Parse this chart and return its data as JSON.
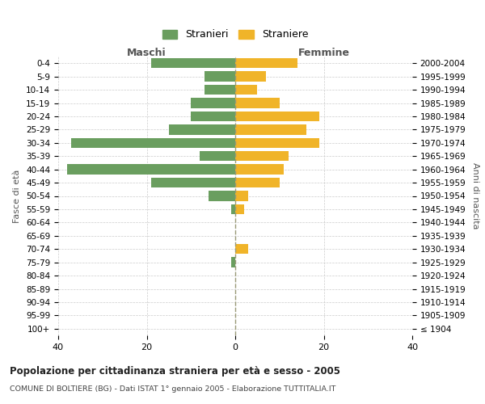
{
  "age_groups": [
    "0-4",
    "5-9",
    "10-14",
    "15-19",
    "20-24",
    "25-29",
    "30-34",
    "35-39",
    "40-44",
    "45-49",
    "50-54",
    "55-59",
    "60-64",
    "65-69",
    "70-74",
    "75-79",
    "80-84",
    "85-89",
    "90-94",
    "95-99",
    "100+"
  ],
  "birth_years": [
    "2000-2004",
    "1995-1999",
    "1990-1994",
    "1985-1989",
    "1980-1984",
    "1975-1979",
    "1970-1974",
    "1965-1969",
    "1960-1964",
    "1955-1959",
    "1950-1954",
    "1945-1949",
    "1940-1944",
    "1935-1939",
    "1930-1934",
    "1925-1929",
    "1920-1924",
    "1915-1919",
    "1910-1914",
    "1905-1909",
    "≤ 1904"
  ],
  "maschi": [
    19,
    7,
    7,
    10,
    10,
    15,
    37,
    8,
    38,
    19,
    6,
    1,
    0,
    0,
    0,
    1,
    0,
    0,
    0,
    0,
    0
  ],
  "femmine": [
    14,
    7,
    5,
    10,
    19,
    16,
    19,
    12,
    11,
    10,
    3,
    2,
    0,
    0,
    3,
    0,
    0,
    0,
    0,
    0,
    0
  ],
  "color_maschi": "#6a9e5f",
  "color_femmine": "#f0b429",
  "background_color": "#ffffff",
  "grid_color": "#cccccc",
  "title": "Popolazione per cittadinanza straniera per età e sesso - 2005",
  "subtitle": "COMUNE DI BOLTIERE (BG) - Dati ISTAT 1° gennaio 2005 - Elaborazione TUTTITALIA.IT",
  "xlabel_left": "Maschi",
  "xlabel_right": "Femmine",
  "ylabel_left": "Fasce di età",
  "ylabel_right": "Anni di nascita",
  "legend_maschi": "Stranieri",
  "legend_femmine": "Straniere",
  "xlim": 40,
  "xticks": [
    -40,
    -20,
    0,
    20,
    40
  ],
  "xticklabels": [
    "40",
    "20",
    "0",
    "20",
    "40"
  ]
}
